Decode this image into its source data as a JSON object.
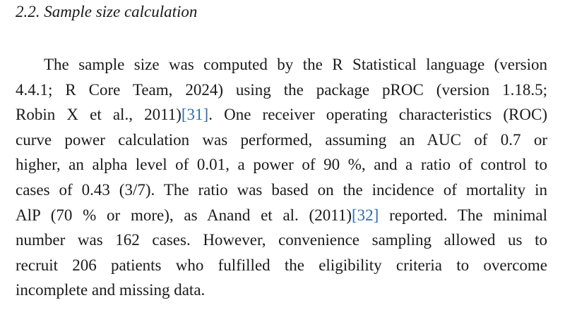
{
  "section": {
    "heading": "2.2.  Sample size calculation",
    "paragraph": [
      [
        "The sample size was computed by the R Statistical language (version"
      ],
      [
        "4.4.1; R Core Team, 2024) using the package pROC (version 1.18.5;"
      ],
      [
        "Robin X et al., 2011)",
        {
          "citation": "[31]"
        },
        ". One receiver operating characteristics (ROC)"
      ],
      [
        "curve power calculation was performed, assuming an AUC of 0.7 or"
      ],
      [
        "higher, an alpha level of 0.01, a power of 90 %, and a ratio of control to"
      ],
      [
        "cases of 0.43 (3/7). The ratio was based on the incidence of mortality in"
      ],
      [
        "AlP (70 % or more), as Anand et al. (2011)",
        {
          "citation": "[32]"
        },
        " reported. The minimal"
      ],
      [
        "number was 162 cases. However, convenience sampling allowed us to"
      ],
      [
        "recruit 206 patients who fulfilled the eligibility criteria to overcome"
      ],
      [
        "incomplete and missing data."
      ]
    ]
  }
}
